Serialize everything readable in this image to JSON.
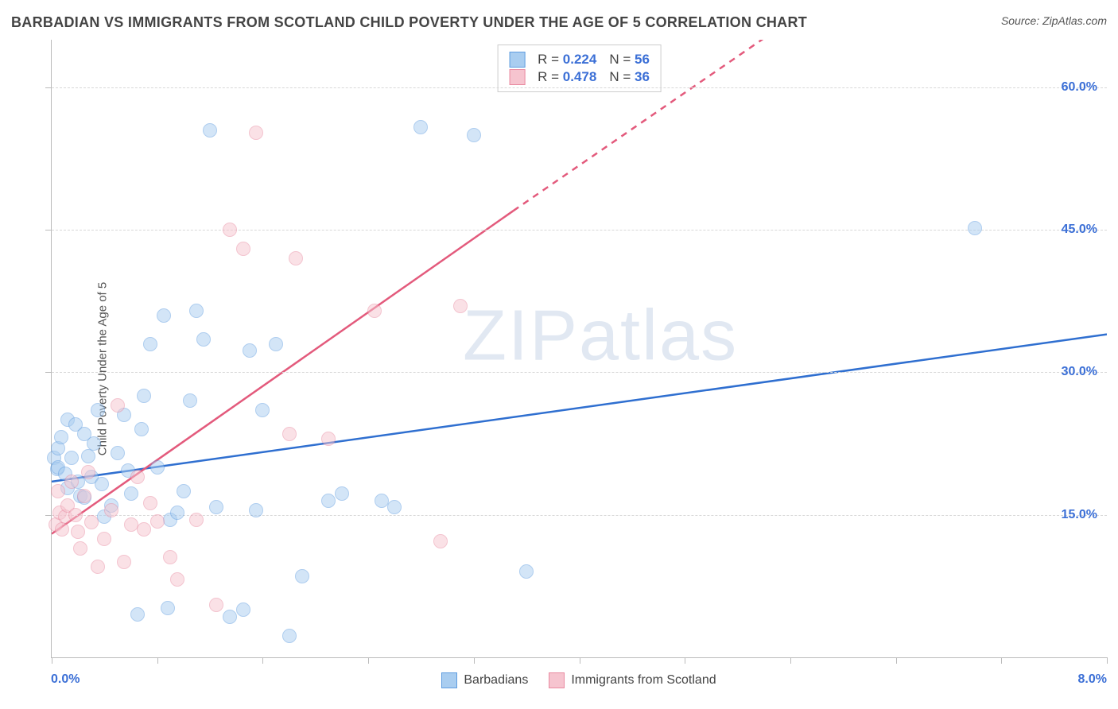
{
  "title": "BARBADIAN VS IMMIGRANTS FROM SCOTLAND CHILD POVERTY UNDER THE AGE OF 5 CORRELATION CHART",
  "source_label": "Source: ",
  "source_name": "ZipAtlas.com",
  "y_axis_label": "Child Poverty Under the Age of 5",
  "watermark": "ZIPatlas",
  "chart": {
    "type": "scatter",
    "xlim": [
      0.0,
      8.0
    ],
    "ylim": [
      0.0,
      65.0
    ],
    "x_ticks": [
      0.0,
      0.8,
      1.6,
      2.4,
      3.2,
      4.0,
      4.8,
      5.6,
      6.4,
      7.2,
      8.0
    ],
    "x_tick_labels": {
      "0": "0.0%",
      "10": "8.0%"
    },
    "y_gridlines": [
      15.0,
      30.0,
      45.0,
      60.0
    ],
    "y_tick_labels": [
      "15.0%",
      "30.0%",
      "45.0%",
      "60.0%"
    ],
    "background_color": "#ffffff",
    "grid_color": "#d8d8d8",
    "axis_color": "#bbbbbb",
    "marker_radius": 9,
    "marker_opacity": 0.5,
    "line_width": 2.5,
    "series": [
      {
        "name": "Barbadians",
        "color_fill": "#a9cdf0",
        "color_stroke": "#5f9de0",
        "line_color": "#2f6fd0",
        "R": "0.224",
        "N": "56",
        "reg": {
          "x1": 0.0,
          "y1": 18.5,
          "x2": 8.0,
          "y2": 34.0,
          "dash_from_x": 8.0
        },
        "points": [
          [
            0.02,
            21.0
          ],
          [
            0.04,
            19.8
          ],
          [
            0.05,
            22.0
          ],
          [
            0.05,
            20.0
          ],
          [
            0.07,
            23.2
          ],
          [
            0.1,
            19.3
          ],
          [
            0.12,
            17.8
          ],
          [
            0.12,
            25.0
          ],
          [
            0.15,
            21.0
          ],
          [
            0.18,
            24.5
          ],
          [
            0.2,
            18.5
          ],
          [
            0.22,
            17.0
          ],
          [
            0.25,
            16.8
          ],
          [
            0.25,
            23.5
          ],
          [
            0.28,
            21.2
          ],
          [
            0.3,
            19.0
          ],
          [
            0.32,
            22.5
          ],
          [
            0.35,
            26.0
          ],
          [
            0.38,
            18.2
          ],
          [
            0.4,
            14.8
          ],
          [
            0.45,
            16.0
          ],
          [
            0.5,
            21.5
          ],
          [
            0.55,
            25.5
          ],
          [
            0.58,
            19.7
          ],
          [
            0.6,
            17.2
          ],
          [
            0.65,
            4.5
          ],
          [
            0.68,
            24.0
          ],
          [
            0.7,
            27.5
          ],
          [
            0.75,
            33.0
          ],
          [
            0.8,
            20.0
          ],
          [
            0.85,
            36.0
          ],
          [
            0.88,
            5.2
          ],
          [
            0.9,
            14.5
          ],
          [
            0.95,
            15.2
          ],
          [
            1.0,
            17.5
          ],
          [
            1.05,
            27.0
          ],
          [
            1.1,
            36.5
          ],
          [
            1.15,
            33.5
          ],
          [
            1.2,
            55.5
          ],
          [
            1.25,
            15.8
          ],
          [
            1.35,
            4.3
          ],
          [
            1.45,
            5.0
          ],
          [
            1.5,
            32.3
          ],
          [
            1.55,
            15.5
          ],
          [
            1.6,
            26.0
          ],
          [
            1.7,
            33.0
          ],
          [
            1.8,
            2.3
          ],
          [
            1.9,
            8.5
          ],
          [
            2.1,
            16.5
          ],
          [
            2.2,
            17.2
          ],
          [
            2.5,
            16.5
          ],
          [
            2.6,
            15.8
          ],
          [
            2.8,
            55.8
          ],
          [
            3.2,
            55.0
          ],
          [
            3.6,
            9.0
          ],
          [
            7.0,
            45.2
          ]
        ]
      },
      {
        "name": "Immigrants from Scotland",
        "color_fill": "#f6c4cf",
        "color_stroke": "#e98aa0",
        "line_color": "#e35a7c",
        "R": "0.478",
        "N": "36",
        "reg": {
          "x1": 0.0,
          "y1": 13.0,
          "x2": 3.5,
          "y2": 47.0,
          "dash_from_x": 3.5,
          "dash_x2": 8.0,
          "dash_y2": 90.0
        },
        "points": [
          [
            0.03,
            14.0
          ],
          [
            0.05,
            17.5
          ],
          [
            0.06,
            15.2
          ],
          [
            0.08,
            13.5
          ],
          [
            0.1,
            14.8
          ],
          [
            0.12,
            16.0
          ],
          [
            0.15,
            18.5
          ],
          [
            0.18,
            15.0
          ],
          [
            0.2,
            13.2
          ],
          [
            0.22,
            11.5
          ],
          [
            0.25,
            17.0
          ],
          [
            0.28,
            19.5
          ],
          [
            0.3,
            14.2
          ],
          [
            0.35,
            9.5
          ],
          [
            0.4,
            12.5
          ],
          [
            0.45,
            15.5
          ],
          [
            0.5,
            26.5
          ],
          [
            0.55,
            10.0
          ],
          [
            0.6,
            14.0
          ],
          [
            0.65,
            19.0
          ],
          [
            0.7,
            13.5
          ],
          [
            0.75,
            16.2
          ],
          [
            0.8,
            14.3
          ],
          [
            0.9,
            10.5
          ],
          [
            0.95,
            8.2
          ],
          [
            1.1,
            14.5
          ],
          [
            1.25,
            5.5
          ],
          [
            1.35,
            45.0
          ],
          [
            1.45,
            43.0
          ],
          [
            1.55,
            55.2
          ],
          [
            1.8,
            23.5
          ],
          [
            1.85,
            42.0
          ],
          [
            2.1,
            23.0
          ],
          [
            2.45,
            36.5
          ],
          [
            2.95,
            12.2
          ],
          [
            3.1,
            37.0
          ]
        ]
      }
    ]
  },
  "stats_box": {
    "labels": {
      "R": "R =",
      "N": "N ="
    }
  }
}
